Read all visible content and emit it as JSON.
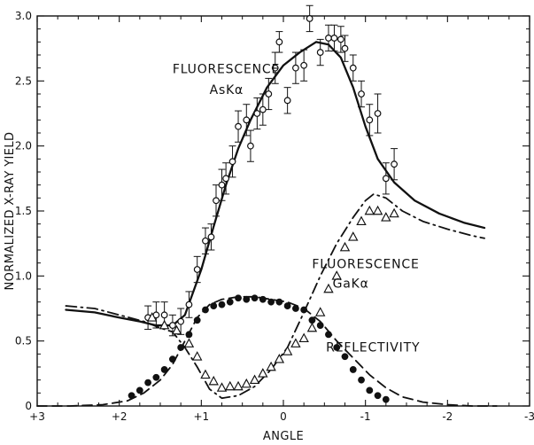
{
  "chart_data": {
    "type": "scatter",
    "title": "",
    "xlabel": "ANGLE",
    "ylabel": "NORMALIZED X-RAY YIELD",
    "xlim": [
      3,
      -3
    ],
    "ylim": [
      0,
      3.0
    ],
    "x_ticks": [
      3,
      2,
      1,
      0,
      -1,
      -2,
      -3
    ],
    "x_tick_labels": [
      "+3",
      "+2",
      "+1",
      "0",
      "-1",
      "-2",
      "-3"
    ],
    "y_ticks": [
      0,
      0.5,
      1.0,
      1.5,
      2.0,
      2.5,
      3.0
    ],
    "y_tick_labels": [
      "0",
      "0.5",
      "1.0",
      "1.5",
      "2.0",
      "2.5",
      "3.0"
    ],
    "grid": false,
    "annotations": [
      {
        "text": "FLUORESCENCE",
        "x": 1.35,
        "y": 2.56
      },
      {
        "text": "AsKα",
        "x": 0.9,
        "y": 2.4
      },
      {
        "text": "FLUORESCENCE",
        "x": -0.35,
        "y": 1.06
      },
      {
        "text": "GaKα",
        "x": -0.6,
        "y": 0.91
      },
      {
        "text": "REFLECTIVITY",
        "x": -0.52,
        "y": 0.42
      }
    ],
    "series": [
      {
        "name": "FLUORESCENCE AsKα",
        "kind": "line",
        "style": "solid",
        "color": "#111111",
        "x": [
          2.65,
          2.3,
          2.0,
          1.75,
          1.55,
          1.35,
          1.2,
          1.0,
          0.85,
          0.7,
          0.55,
          0.4,
          0.2,
          0.0,
          -0.2,
          -0.4,
          -0.55,
          -0.7,
          -0.85,
          -1.0,
          -1.15,
          -1.35,
          -1.6,
          -1.9,
          -2.2,
          -2.45
        ],
        "y": [
          0.74,
          0.72,
          0.68,
          0.65,
          0.62,
          0.62,
          0.7,
          1.05,
          1.38,
          1.7,
          1.98,
          2.2,
          2.45,
          2.62,
          2.72,
          2.8,
          2.78,
          2.68,
          2.45,
          2.15,
          1.9,
          1.72,
          1.58,
          1.48,
          1.41,
          1.37
        ]
      },
      {
        "name": "FLUORESCENCE GaKα",
        "kind": "line",
        "style": "dash-dot",
        "color": "#111111",
        "x": [
          2.65,
          2.3,
          2.0,
          1.7,
          1.5,
          1.35,
          1.2,
          1.05,
          0.9,
          0.75,
          0.55,
          0.35,
          0.15,
          -0.05,
          -0.25,
          -0.45,
          -0.65,
          -0.85,
          -1.0,
          -1.1,
          -1.25,
          -1.45,
          -1.7,
          -2.0,
          -2.3,
          -2.45
        ],
        "y": [
          0.77,
          0.75,
          0.7,
          0.65,
          0.6,
          0.57,
          0.45,
          0.3,
          0.13,
          0.06,
          0.08,
          0.15,
          0.28,
          0.45,
          0.72,
          1.0,
          1.25,
          1.45,
          1.58,
          1.63,
          1.6,
          1.5,
          1.42,
          1.36,
          1.31,
          1.29
        ]
      },
      {
        "name": "REFLECTIVITY",
        "kind": "line",
        "style": "dashed",
        "color": "#111111",
        "x": [
          3.0,
          2.6,
          2.2,
          1.9,
          1.7,
          1.5,
          1.35,
          1.2,
          1.05,
          0.9,
          0.75,
          0.55,
          0.35,
          0.15,
          -0.05,
          -0.25,
          -0.45,
          -0.65,
          -0.85,
          -1.05,
          -1.25,
          -1.45,
          -1.7,
          -2.0,
          -2.3,
          -2.6
        ],
        "y": [
          0.0,
          0.0,
          0.01,
          0.04,
          0.1,
          0.2,
          0.32,
          0.5,
          0.68,
          0.78,
          0.82,
          0.84,
          0.84,
          0.82,
          0.8,
          0.75,
          0.65,
          0.5,
          0.37,
          0.24,
          0.14,
          0.07,
          0.03,
          0.01,
          0.0,
          0.0
        ]
      },
      {
        "name": "AsKα data",
        "kind": "points",
        "marker": "open-circle",
        "x": [
          1.65,
          1.55,
          1.45,
          1.35,
          1.25,
          1.15,
          1.05,
          0.95,
          0.88,
          0.82,
          0.75,
          0.7,
          0.62,
          0.55,
          0.45,
          0.4,
          0.32,
          0.25,
          0.18,
          0.1,
          0.05,
          -0.05,
          -0.15,
          -0.25,
          -0.32,
          -0.45,
          -0.55,
          -0.62,
          -0.7,
          -0.75,
          -0.85,
          -0.95,
          -1.05,
          -1.15,
          -1.25,
          -1.35
        ],
        "y": [
          0.68,
          0.7,
          0.7,
          0.62,
          0.65,
          0.78,
          1.05,
          1.27,
          1.3,
          1.58,
          1.7,
          1.75,
          1.88,
          2.15,
          2.2,
          2.0,
          2.25,
          2.28,
          2.4,
          2.6,
          2.8,
          2.35,
          2.6,
          2.62,
          2.98,
          2.72,
          2.83,
          2.83,
          2.82,
          2.75,
          2.6,
          2.4,
          2.2,
          2.25,
          1.75,
          1.86
        ],
        "err": [
          0.09,
          0.1,
          0.1,
          0.08,
          0.1,
          0.1,
          0.1,
          0.1,
          0.1,
          0.12,
          0.12,
          0.12,
          0.12,
          0.12,
          0.12,
          0.12,
          0.12,
          0.12,
          0.12,
          0.12,
          0.08,
          0.1,
          0.12,
          0.12,
          0.1,
          0.1,
          0.1,
          0.1,
          0.1,
          0.1,
          0.1,
          0.1,
          0.12,
          0.15,
          0.12,
          0.12
        ]
      },
      {
        "name": "GaKα data",
        "kind": "points",
        "marker": "open-triangle",
        "x": [
          1.6,
          1.45,
          1.3,
          1.15,
          1.05,
          0.95,
          0.85,
          0.75,
          0.65,
          0.55,
          0.45,
          0.35,
          0.25,
          0.15,
          0.05,
          -0.05,
          -0.15,
          -0.25,
          -0.35,
          -0.45,
          -0.55,
          -0.65,
          -0.75,
          -0.85,
          -0.95,
          -1.05,
          -1.15,
          -1.25,
          -1.35
        ],
        "y": [
          0.68,
          0.62,
          0.58,
          0.48,
          0.38,
          0.24,
          0.19,
          0.14,
          0.15,
          0.15,
          0.17,
          0.2,
          0.25,
          0.3,
          0.36,
          0.42,
          0.48,
          0.52,
          0.6,
          0.72,
          0.9,
          1.0,
          1.22,
          1.3,
          1.42,
          1.5,
          1.5,
          1.45,
          1.48
        ]
      },
      {
        "name": "Reflectivity data",
        "kind": "points",
        "marker": "filled-circle",
        "x": [
          1.85,
          1.75,
          1.65,
          1.55,
          1.45,
          1.35,
          1.25,
          1.15,
          1.05,
          0.95,
          0.85,
          0.75,
          0.65,
          0.55,
          0.45,
          0.35,
          0.25,
          0.15,
          0.05,
          -0.05,
          -0.15,
          -0.25,
          -0.35,
          -0.45,
          -0.55,
          -0.65,
          -0.75,
          -0.85,
          -0.95,
          -1.05,
          -1.15,
          -1.25
        ],
        "y": [
          0.08,
          0.12,
          0.18,
          0.22,
          0.28,
          0.36,
          0.45,
          0.55,
          0.66,
          0.74,
          0.77,
          0.78,
          0.8,
          0.83,
          0.82,
          0.83,
          0.82,
          0.8,
          0.8,
          0.77,
          0.75,
          0.74,
          0.66,
          0.62,
          0.55,
          0.45,
          0.38,
          0.28,
          0.2,
          0.12,
          0.08,
          0.05
        ]
      }
    ]
  }
}
